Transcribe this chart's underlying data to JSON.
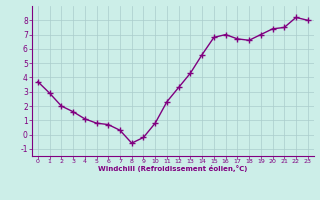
{
  "x": [
    0,
    1,
    2,
    3,
    4,
    5,
    6,
    7,
    8,
    9,
    10,
    11,
    12,
    13,
    14,
    15,
    16,
    17,
    18,
    19,
    20,
    21,
    22,
    23
  ],
  "y": [
    3.7,
    2.9,
    2.0,
    1.6,
    1.1,
    0.8,
    0.7,
    0.3,
    -0.6,
    -0.2,
    0.8,
    2.3,
    3.3,
    4.3,
    5.6,
    6.8,
    7.0,
    6.7,
    6.6,
    7.0,
    7.4,
    7.5,
    8.2,
    8.0
  ],
  "line_color": "#800080",
  "marker": "+",
  "markersize": 4,
  "bg_color": "#cceee8",
  "grid_color": "#aacccc",
  "xlabel": "Windchill (Refroidissement éolien,°C)",
  "xlabel_color": "#800080",
  "tick_color": "#800080",
  "label_color": "#800080",
  "xlim": [
    -0.5,
    23.5
  ],
  "ylim": [
    -1.5,
    9.0
  ],
  "yticks": [
    -1,
    0,
    1,
    2,
    3,
    4,
    5,
    6,
    7,
    8
  ],
  "xticks": [
    0,
    1,
    2,
    3,
    4,
    5,
    6,
    7,
    8,
    9,
    10,
    11,
    12,
    13,
    14,
    15,
    16,
    17,
    18,
    19,
    20,
    21,
    22,
    23
  ],
  "linewidth": 1.0
}
